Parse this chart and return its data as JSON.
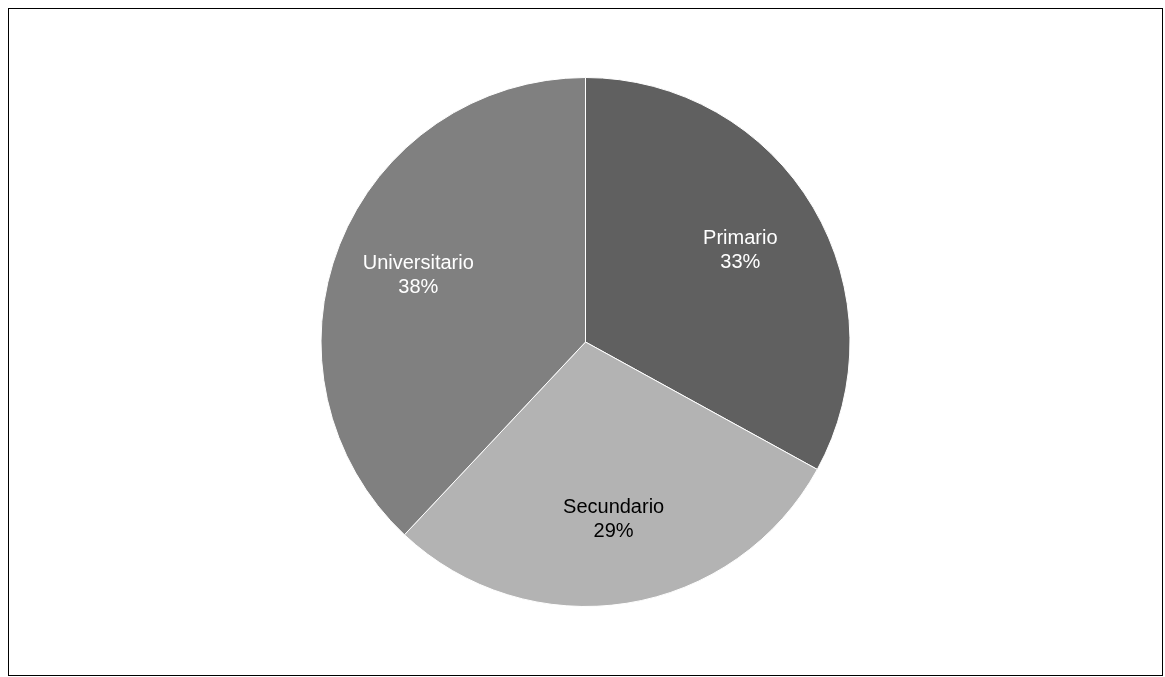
{
  "chart_data": {
    "type": "pie",
    "categories": [
      "Primario",
      "Secundario",
      "Universitario"
    ],
    "values": [
      33,
      29,
      38
    ],
    "value_labels": [
      "33%",
      "29%",
      "38%"
    ],
    "colors": [
      "#606060",
      "#b3b3b3",
      "#808080"
    ],
    "legend": false
  }
}
